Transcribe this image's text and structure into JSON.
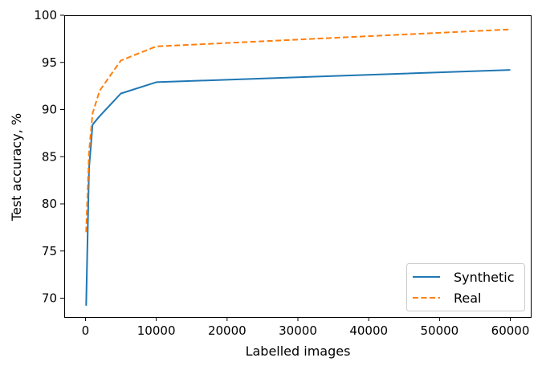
{
  "chart_data": {
    "type": "line",
    "title": "",
    "xlabel": "Labelled images",
    "ylabel": "Test accuracy, %",
    "xlim": [
      -3000,
      63000
    ],
    "ylim": [
      68,
      100
    ],
    "xticks": [
      0,
      10000,
      20000,
      30000,
      40000,
      50000,
      60000
    ],
    "yticks": [
      70,
      75,
      80,
      85,
      90,
      95,
      100
    ],
    "grid": false,
    "legend_position": "lower-right",
    "series": [
      {
        "name": "Synthetic",
        "color": "#1f77b4",
        "style": "solid",
        "x": [
          100,
          500,
          1000,
          2000,
          5000,
          10000,
          60000
        ],
        "y": [
          69.2,
          83.8,
          88.4,
          89.3,
          91.7,
          92.9,
          94.2
        ]
      },
      {
        "name": "Real",
        "color": "#ff7f0e",
        "style": "dashed",
        "x": [
          100,
          500,
          1000,
          2000,
          5000,
          10000,
          60000
        ],
        "y": [
          77.0,
          85.5,
          89.6,
          92.0,
          95.2,
          96.7,
          98.5
        ]
      }
    ]
  }
}
